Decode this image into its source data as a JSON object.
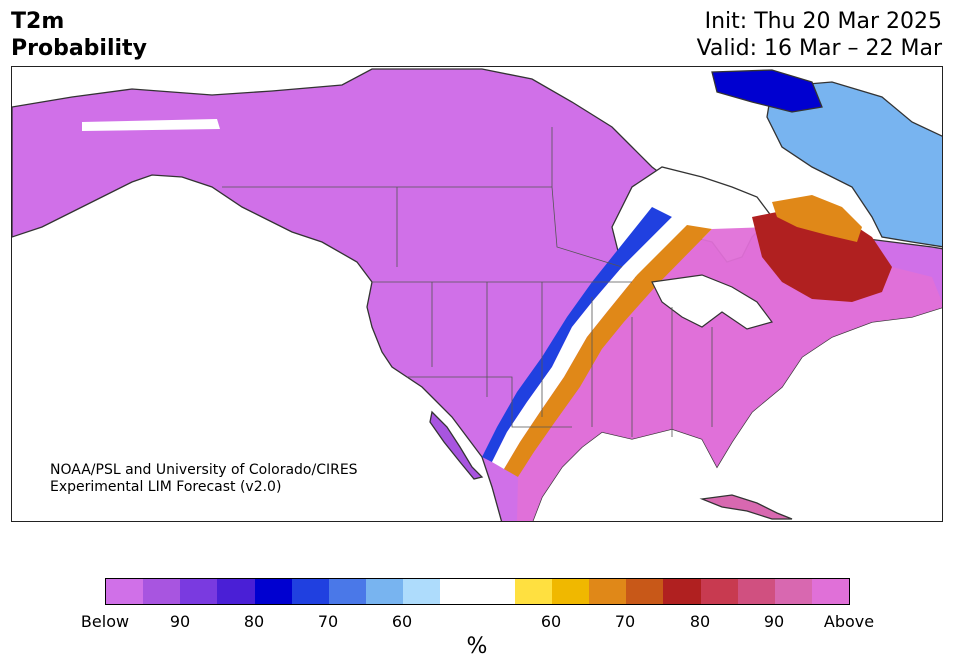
{
  "title": {
    "line1": "T2m",
    "line2": "Probability"
  },
  "dates": {
    "init": "Init: Thu 20 Mar 2025",
    "valid": "Valid: 16 Mar – 22 Mar"
  },
  "credit": {
    "line1": "NOAA/PSL and University of Colorado/CIRES",
    "line2": "Experimental LIM Forecast (v2.0)"
  },
  "colorbar": {
    "colors": [
      "#d070e8",
      "#a855e0",
      "#7a3ae0",
      "#4a1fd6",
      "#0000d0",
      "#2040e0",
      "#4a78e8",
      "#78b4f0",
      "#aedcfc",
      "#ffffff",
      "#ffffff",
      "#ffe040",
      "#f0b800",
      "#e08818",
      "#c85818",
      "#b02020",
      "#c83a50",
      "#d05080",
      "#d868b0",
      "#e070d8"
    ],
    "ticks": [
      "Below",
      "90",
      "80",
      "70",
      "60",
      "60",
      "70",
      "80",
      "90",
      "Above"
    ],
    "unit": "%"
  },
  "palette": {
    "below_high": "#d070e8",
    "below_mid": "#4a1fd6",
    "near_normal": "#ffffff",
    "above_mid": "#c85818",
    "above_high": "#e070d8"
  }
}
